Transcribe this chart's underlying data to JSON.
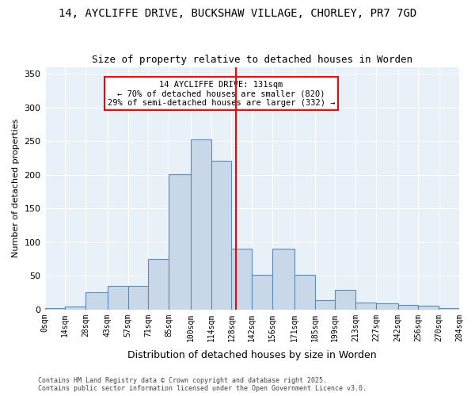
{
  "title1": "14, AYCLIFFE DRIVE, BUCKSHAW VILLAGE, CHORLEY, PR7 7GD",
  "title2": "Size of property relative to detached houses in Worden",
  "xlabel": "Distribution of detached houses by size in Worden",
  "ylabel": "Number of detached properties",
  "bar_color": "#c8d8e8",
  "bar_edgecolor": "#5b8db8",
  "background_color": "#e8f0f8",
  "annotation_text": "14 AYCLIFFE DRIVE: 131sqm\n← 70% of detached houses are smaller (820)\n29% of semi-detached houses are larger (332) →",
  "vline_x": 131,
  "vline_color": "red",
  "bins": [
    0,
    14,
    28,
    43,
    57,
    71,
    85,
    100,
    114,
    128,
    142,
    156,
    171,
    185,
    199,
    213,
    227,
    242,
    256,
    270,
    284
  ],
  "bar_heights": [
    2,
    5,
    26,
    35,
    35,
    75,
    201,
    253,
    221,
    90,
    52,
    90,
    52,
    14,
    29,
    10,
    9,
    7,
    6,
    2
  ],
  "ylim": [
    0,
    360
  ],
  "yticks": [
    0,
    50,
    100,
    150,
    200,
    250,
    300,
    350
  ],
  "footer": "Contains HM Land Registry data © Crown copyright and database right 2025.\nContains public sector information licensed under the Open Government Licence v3.0.",
  "tick_labels": [
    "0sqm",
    "14sqm",
    "28sqm",
    "43sqm",
    "57sqm",
    "71sqm",
    "85sqm",
    "100sqm",
    "114sqm",
    "128sqm",
    "142sqm",
    "156sqm",
    "171sqm",
    "185sqm",
    "199sqm",
    "213sqm",
    "227sqm",
    "242sqm",
    "256sqm",
    "270sqm",
    "284sqm"
  ]
}
